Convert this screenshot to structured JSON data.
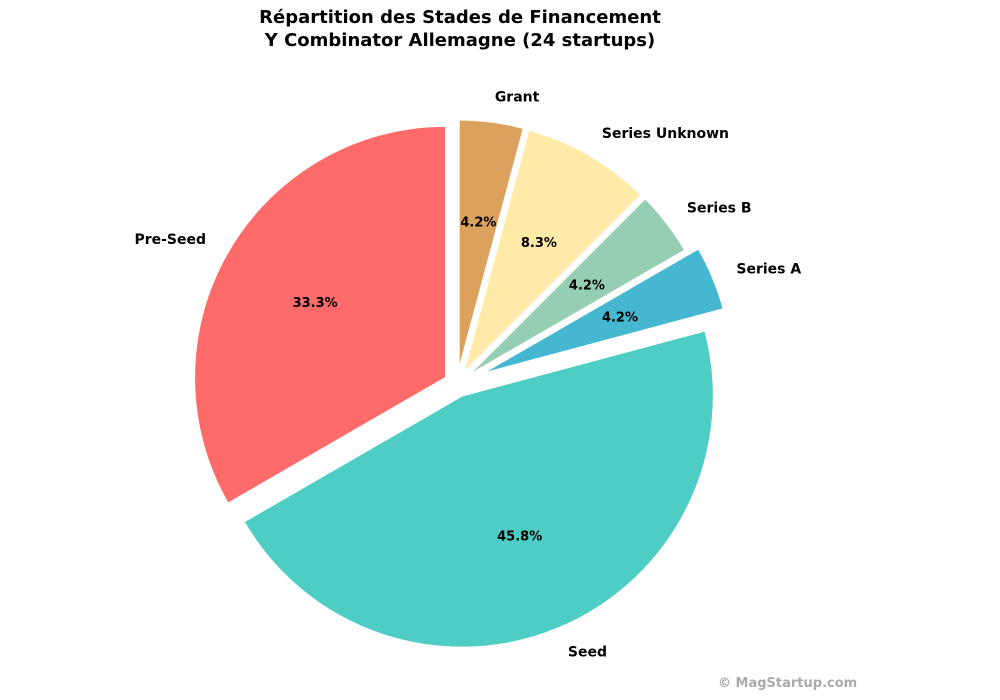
{
  "chart_data": {
    "type": "pie",
    "title_line1": "Répartition des Stades de Financement",
    "title_line2": "Y Combinator Allemagne (24 startups)",
    "start_angle_deg": 90,
    "direction": "counterclockwise",
    "slices": [
      {
        "label": "Pre-Seed",
        "value": 8,
        "pct": "33.3%",
        "color": "#FF6B6B",
        "explode": 0.05
      },
      {
        "label": "Seed",
        "value": 11,
        "pct": "45.8%",
        "color": "#4ECDC4",
        "explode": 0.05
      },
      {
        "label": "Series A",
        "value": 1,
        "pct": "4.2%",
        "color": "#45B7D1",
        "explode": 0.1
      },
      {
        "label": "Series B",
        "value": 1,
        "pct": "4.2%",
        "color": "#96CEB4",
        "explode": 0.05
      },
      {
        "label": "Series Unknown",
        "value": 2,
        "pct": "8.3%",
        "color": "#FFEAA7",
        "explode": 0.05
      },
      {
        "label": "Grant",
        "value": 1,
        "pct": "4.2%",
        "color": "#DDA15E",
        "explode": 0.05
      }
    ]
  },
  "watermark": "© MagStartup.com"
}
